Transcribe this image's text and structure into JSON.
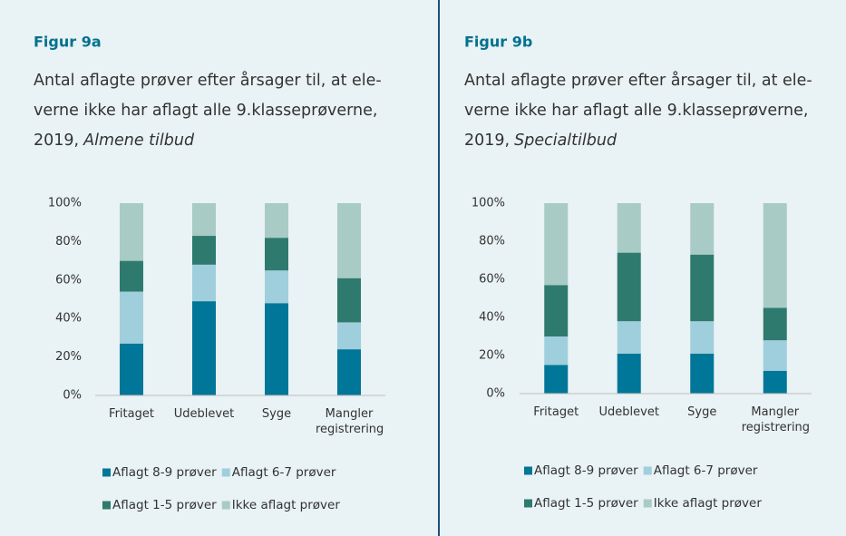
{
  "chart_data": [
    {
      "type": "bar",
      "stacked": true,
      "title": "Figur 9a",
      "subtitle_lines": [
        "Antal aflagte prøver efter årsager til, at ele-",
        "verne ikke har aflagt alle 9.klasseprøverne,",
        "2019,"
      ],
      "subtitle_italic": "Almene tilbud",
      "categories": [
        "Fritaget",
        "Udeblevet",
        "Syge",
        "Mangler registrering"
      ],
      "series": [
        {
          "name": "Aflagt 8-9 prøver",
          "color": "#007698",
          "values": [
            27,
            49,
            48,
            24
          ]
        },
        {
          "name": "Aflagt 6-7 prøver",
          "color": "#9fcfdc",
          "values": [
            27,
            19,
            17,
            14
          ]
        },
        {
          "name": "Aflagt 1-5 prøver",
          "color": "#2f7a6e",
          "values": [
            16,
            15,
            17,
            23
          ]
        },
        {
          "name": "Ikke aflagt prøver",
          "color": "#a9cbc5",
          "values": [
            30,
            17,
            18,
            39
          ]
        }
      ],
      "ylim": [
        0,
        100
      ],
      "yticks": [
        {
          "value": 0,
          "label": "0%"
        },
        {
          "value": 20,
          "label": "20%"
        },
        {
          "value": 40,
          "label": "40%"
        },
        {
          "value": 60,
          "label": "60%"
        },
        {
          "value": 80,
          "label": "80%"
        },
        {
          "value": 100,
          "label": "100%"
        }
      ]
    },
    {
      "type": "bar",
      "stacked": true,
      "title": "Figur 9b",
      "subtitle_lines": [
        "Antal aflagte prøver efter årsager til, at ele-",
        "verne ikke har aflagt alle 9.klasseprøverne,",
        "2019,"
      ],
      "subtitle_italic": "Specialtilbud",
      "categories": [
        "Fritaget",
        "Udeblevet",
        "Syge",
        "Mangler registrering"
      ],
      "series": [
        {
          "name": "Aflagt 8-9 prøver",
          "color": "#007698",
          "values": [
            15,
            21,
            21,
            12
          ]
        },
        {
          "name": "Aflagt 6-7 prøver",
          "color": "#9fcfdc",
          "values": [
            15,
            17,
            17,
            16
          ]
        },
        {
          "name": "Aflagt 1-5 prøver",
          "color": "#2f7a6e",
          "values": [
            27,
            36,
            35,
            17
          ]
        },
        {
          "name": "Ikke aflagt prøver",
          "color": "#a9cbc5",
          "values": [
            43,
            26,
            27,
            55
          ]
        }
      ],
      "ylim": [
        0,
        100
      ],
      "yticks": [
        {
          "value": 0,
          "label": "0%"
        },
        {
          "value": 20,
          "label": "20%"
        },
        {
          "value": 40,
          "label": "40%"
        },
        {
          "value": 60,
          "label": "60%"
        },
        {
          "value": 80,
          "label": "80%"
        },
        {
          "value": 100,
          "label": "100%"
        }
      ]
    }
  ]
}
